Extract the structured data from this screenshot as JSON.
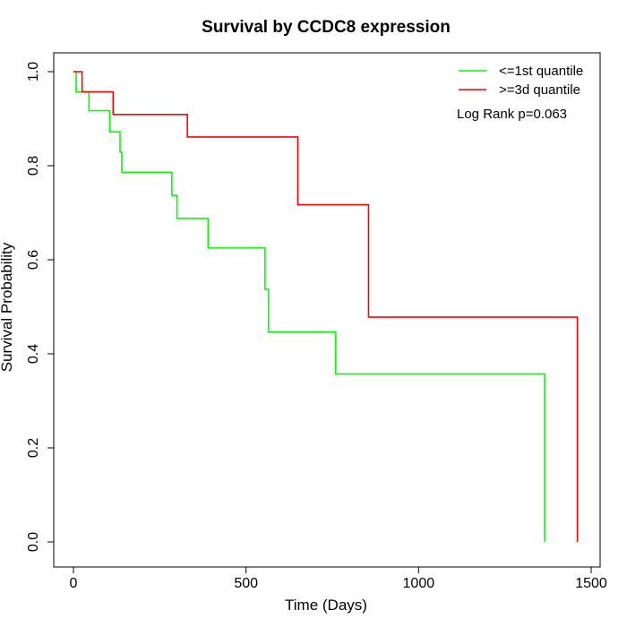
{
  "chart_data": {
    "type": "line",
    "step": true,
    "title": "Survival by CCDC8 expression",
    "xlabel": "Time (Days)",
    "ylabel": "Survival Probability",
    "xlim": [
      0,
      1500
    ],
    "ylim": [
      0,
      1
    ],
    "x_ticks": [
      0,
      500,
      1000,
      1500
    ],
    "y_ticks": [
      0.0,
      0.2,
      0.4,
      0.6,
      0.8,
      1.0
    ],
    "x_tick_labels": [
      "0",
      "500",
      "1000",
      "1500"
    ],
    "y_tick_labels": [
      "0.0",
      "0.2",
      "0.4",
      "0.6",
      "0.8",
      "1.0"
    ],
    "grid": false,
    "legend_position": "top-right",
    "annotation": "Log Rank p=0.063",
    "series": [
      {
        "name": "<=1st quantile",
        "color": "#00ff00",
        "x": [
          0,
          8,
          45,
          105,
          135,
          140,
          285,
          300,
          390,
          555,
          565,
          760,
          1365,
          1365
        ],
        "y": [
          1.0,
          0.957,
          0.917,
          0.872,
          0.829,
          0.786,
          0.737,
          0.688,
          0.625,
          0.537,
          0.446,
          0.357,
          0.357,
          0.0
        ]
      },
      {
        "name": ">=3d quantile",
        "color": "#ff0000",
        "x": [
          0,
          25,
          115,
          330,
          650,
          855,
          1460,
          1460
        ],
        "y": [
          1.0,
          0.957,
          0.909,
          0.861,
          0.717,
          0.478,
          0.478,
          0.0
        ]
      }
    ]
  }
}
